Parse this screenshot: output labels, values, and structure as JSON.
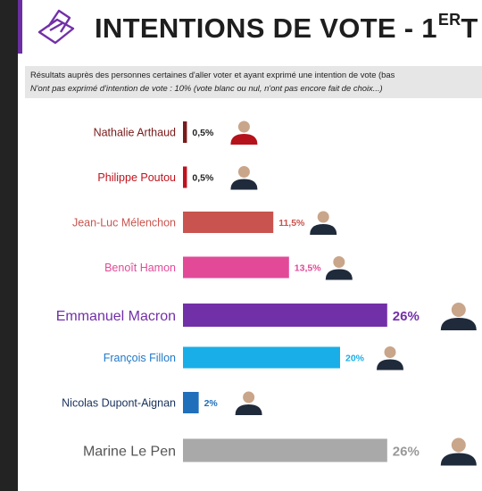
{
  "header": {
    "title": "INTENTIONS DE VOTE - 1",
    "title_sup": "ER",
    "title_trailing": "T",
    "accent_color": "#6b2fa2",
    "icon": "ballot-box-icon"
  },
  "notes": {
    "line1": "Résultats auprès des personnes certaines d'aller voter et ayant exprimé une intention de vote (bas",
    "line2": "N'ont pas exprimé d'intention de vote : 10% (vote blanc ou nul, n'ont pas encore fait de choix...)"
  },
  "chart_data": {
    "type": "bar",
    "orientation": "horizontal",
    "unit": "%",
    "xlim": [
      0,
      30
    ],
    "grid": false,
    "categories": [
      "Nathalie Arthaud",
      "Philippe Poutou",
      "Jean-Luc Mélenchon",
      "Benoît Hamon",
      "Emmanuel Macron",
      "François Fillon",
      "Nicolas Dupont-Aignan",
      "Marine Le Pen"
    ],
    "values": [
      0.5,
      0.5,
      11.5,
      13.5,
      26,
      20,
      2,
      26
    ],
    "value_labels": [
      "0,5%",
      "0,5%",
      "11,5%",
      "13,5%",
      "26%",
      "20%",
      "2%",
      "26%"
    ],
    "colors": [
      "#7a1b1b",
      "#c0121c",
      "#c9544f",
      "#e24a98",
      "#7230a8",
      "#19aee8",
      "#1f6fbb",
      "#a9a9a9"
    ],
    "label_colors": [
      "#7a1b1b",
      "#c0121c",
      "#c9544f",
      "#e24a98",
      "#7230a8",
      "#1f78c8",
      "#17305c",
      "#555555"
    ],
    "value_colors": [
      "#222222",
      "#222222",
      "#c9544f",
      "#e24a98",
      "#7230a8",
      "#19aee8",
      "#1f6fbb",
      "#999999"
    ],
    "emphasis": [
      false,
      false,
      false,
      false,
      true,
      false,
      false,
      true
    ]
  }
}
